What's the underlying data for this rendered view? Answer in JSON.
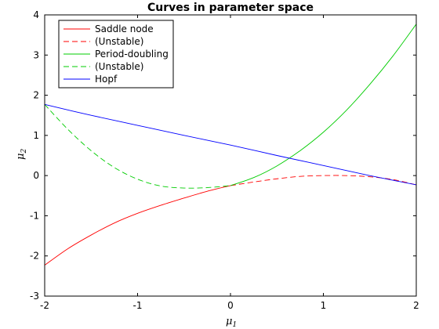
{
  "chart_data": {
    "type": "line",
    "title": "Curves in parameter space",
    "xlabel": {
      "base": "μ",
      "sub": "1"
    },
    "ylabel": {
      "base": "μ",
      "sub": "2"
    },
    "xlim": [
      -2,
      2
    ],
    "ylim": [
      -3,
      4
    ],
    "xticks": [
      -2,
      -1,
      0,
      1,
      2
    ],
    "yticks": [
      -3,
      -2,
      -1,
      0,
      1,
      2,
      3,
      4
    ],
    "grid": false,
    "legend_position": "top-left",
    "series": [
      {
        "name": "Saddle node",
        "color": "#ff0000",
        "dash": "solid",
        "x": [
          -2.0,
          -1.75,
          -1.5,
          -1.25,
          -1.0,
          -0.75,
          -0.5,
          -0.25,
          0.0
        ],
        "y": [
          -2.23,
          -1.82,
          -1.48,
          -1.18,
          -0.94,
          -0.74,
          -0.56,
          -0.39,
          -0.25
        ]
      },
      {
        "name": "(Unstable)",
        "color": "#ff0000",
        "dash": "dashed",
        "x": [
          0.0,
          0.25,
          0.5,
          0.75,
          1.0,
          1.25,
          1.5,
          1.75,
          2.0
        ],
        "y": [
          -0.25,
          -0.16,
          -0.08,
          -0.02,
          0.0,
          0.0,
          -0.03,
          -0.1,
          -0.23
        ]
      },
      {
        "name": "Period-doubling",
        "color": "#00cc00",
        "dash": "solid",
        "x": [
          0.0,
          0.25,
          0.5,
          0.75,
          1.0,
          1.25,
          1.5,
          1.75,
          2.0
        ],
        "y": [
          -0.25,
          -0.05,
          0.24,
          0.62,
          1.08,
          1.63,
          2.27,
          2.98,
          3.77
        ]
      },
      {
        "name": "(Unstable)",
        "color": "#00cc00",
        "dash": "dashed",
        "x": [
          -2.0,
          -1.75,
          -1.5,
          -1.25,
          -1.0,
          -0.75,
          -0.5,
          -0.25,
          0.0
        ],
        "y": [
          1.77,
          1.15,
          0.62,
          0.2,
          -0.09,
          -0.26,
          -0.31,
          -0.3,
          -0.25
        ]
      },
      {
        "name": "Hopf",
        "color": "#0000ff",
        "dash": "solid",
        "x": [
          -2.0,
          -1.5,
          -1.0,
          -0.5,
          0.0,
          0.5,
          1.0,
          1.5,
          2.0
        ],
        "y": [
          1.77,
          1.5,
          1.25,
          1.0,
          0.76,
          0.5,
          0.25,
          0.0,
          -0.23
        ]
      }
    ]
  }
}
